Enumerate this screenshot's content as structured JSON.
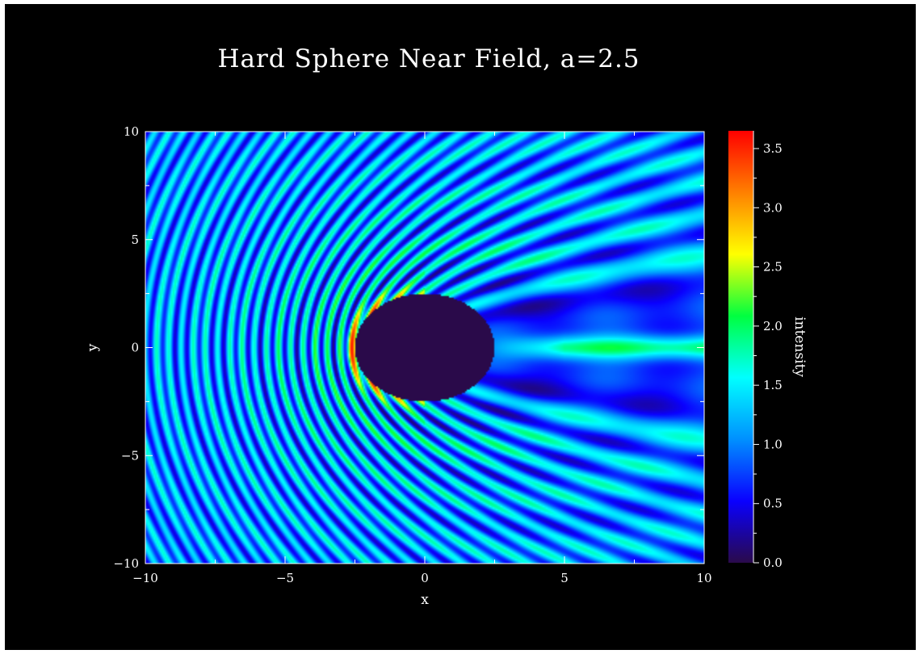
{
  "chart_data": {
    "type": "heatmap",
    "title": "Hard Sphere Near Field, a=2.5",
    "xlabel": "x",
    "ylabel": "y",
    "xlim": [
      -10,
      10
    ],
    "ylim": [
      -10,
      10
    ],
    "x_ticks": [
      "−10",
      "−5",
      "0",
      "5",
      "10"
    ],
    "y_ticks": [
      "−10",
      "−5",
      "0",
      "5",
      "10"
    ],
    "sphere": {
      "center": [
        0,
        0
      ],
      "radius": 2.5
    },
    "colorbar": {
      "label": "intensity",
      "range": [
        0.0,
        3.65
      ],
      "ticks": [
        "0.0",
        "0.5",
        "1.0",
        "1.5",
        "2.0",
        "2.5",
        "3.0",
        "3.5"
      ],
      "colormap": [
        "#2a0a4a",
        "#0a00ff",
        "#0090ff",
        "#00ffff",
        "#00ff40",
        "#ffff00",
        "#ff8000",
        "#ff0000"
      ]
    },
    "grid": false,
    "legend": "colorbar-right",
    "background": "#000000"
  }
}
